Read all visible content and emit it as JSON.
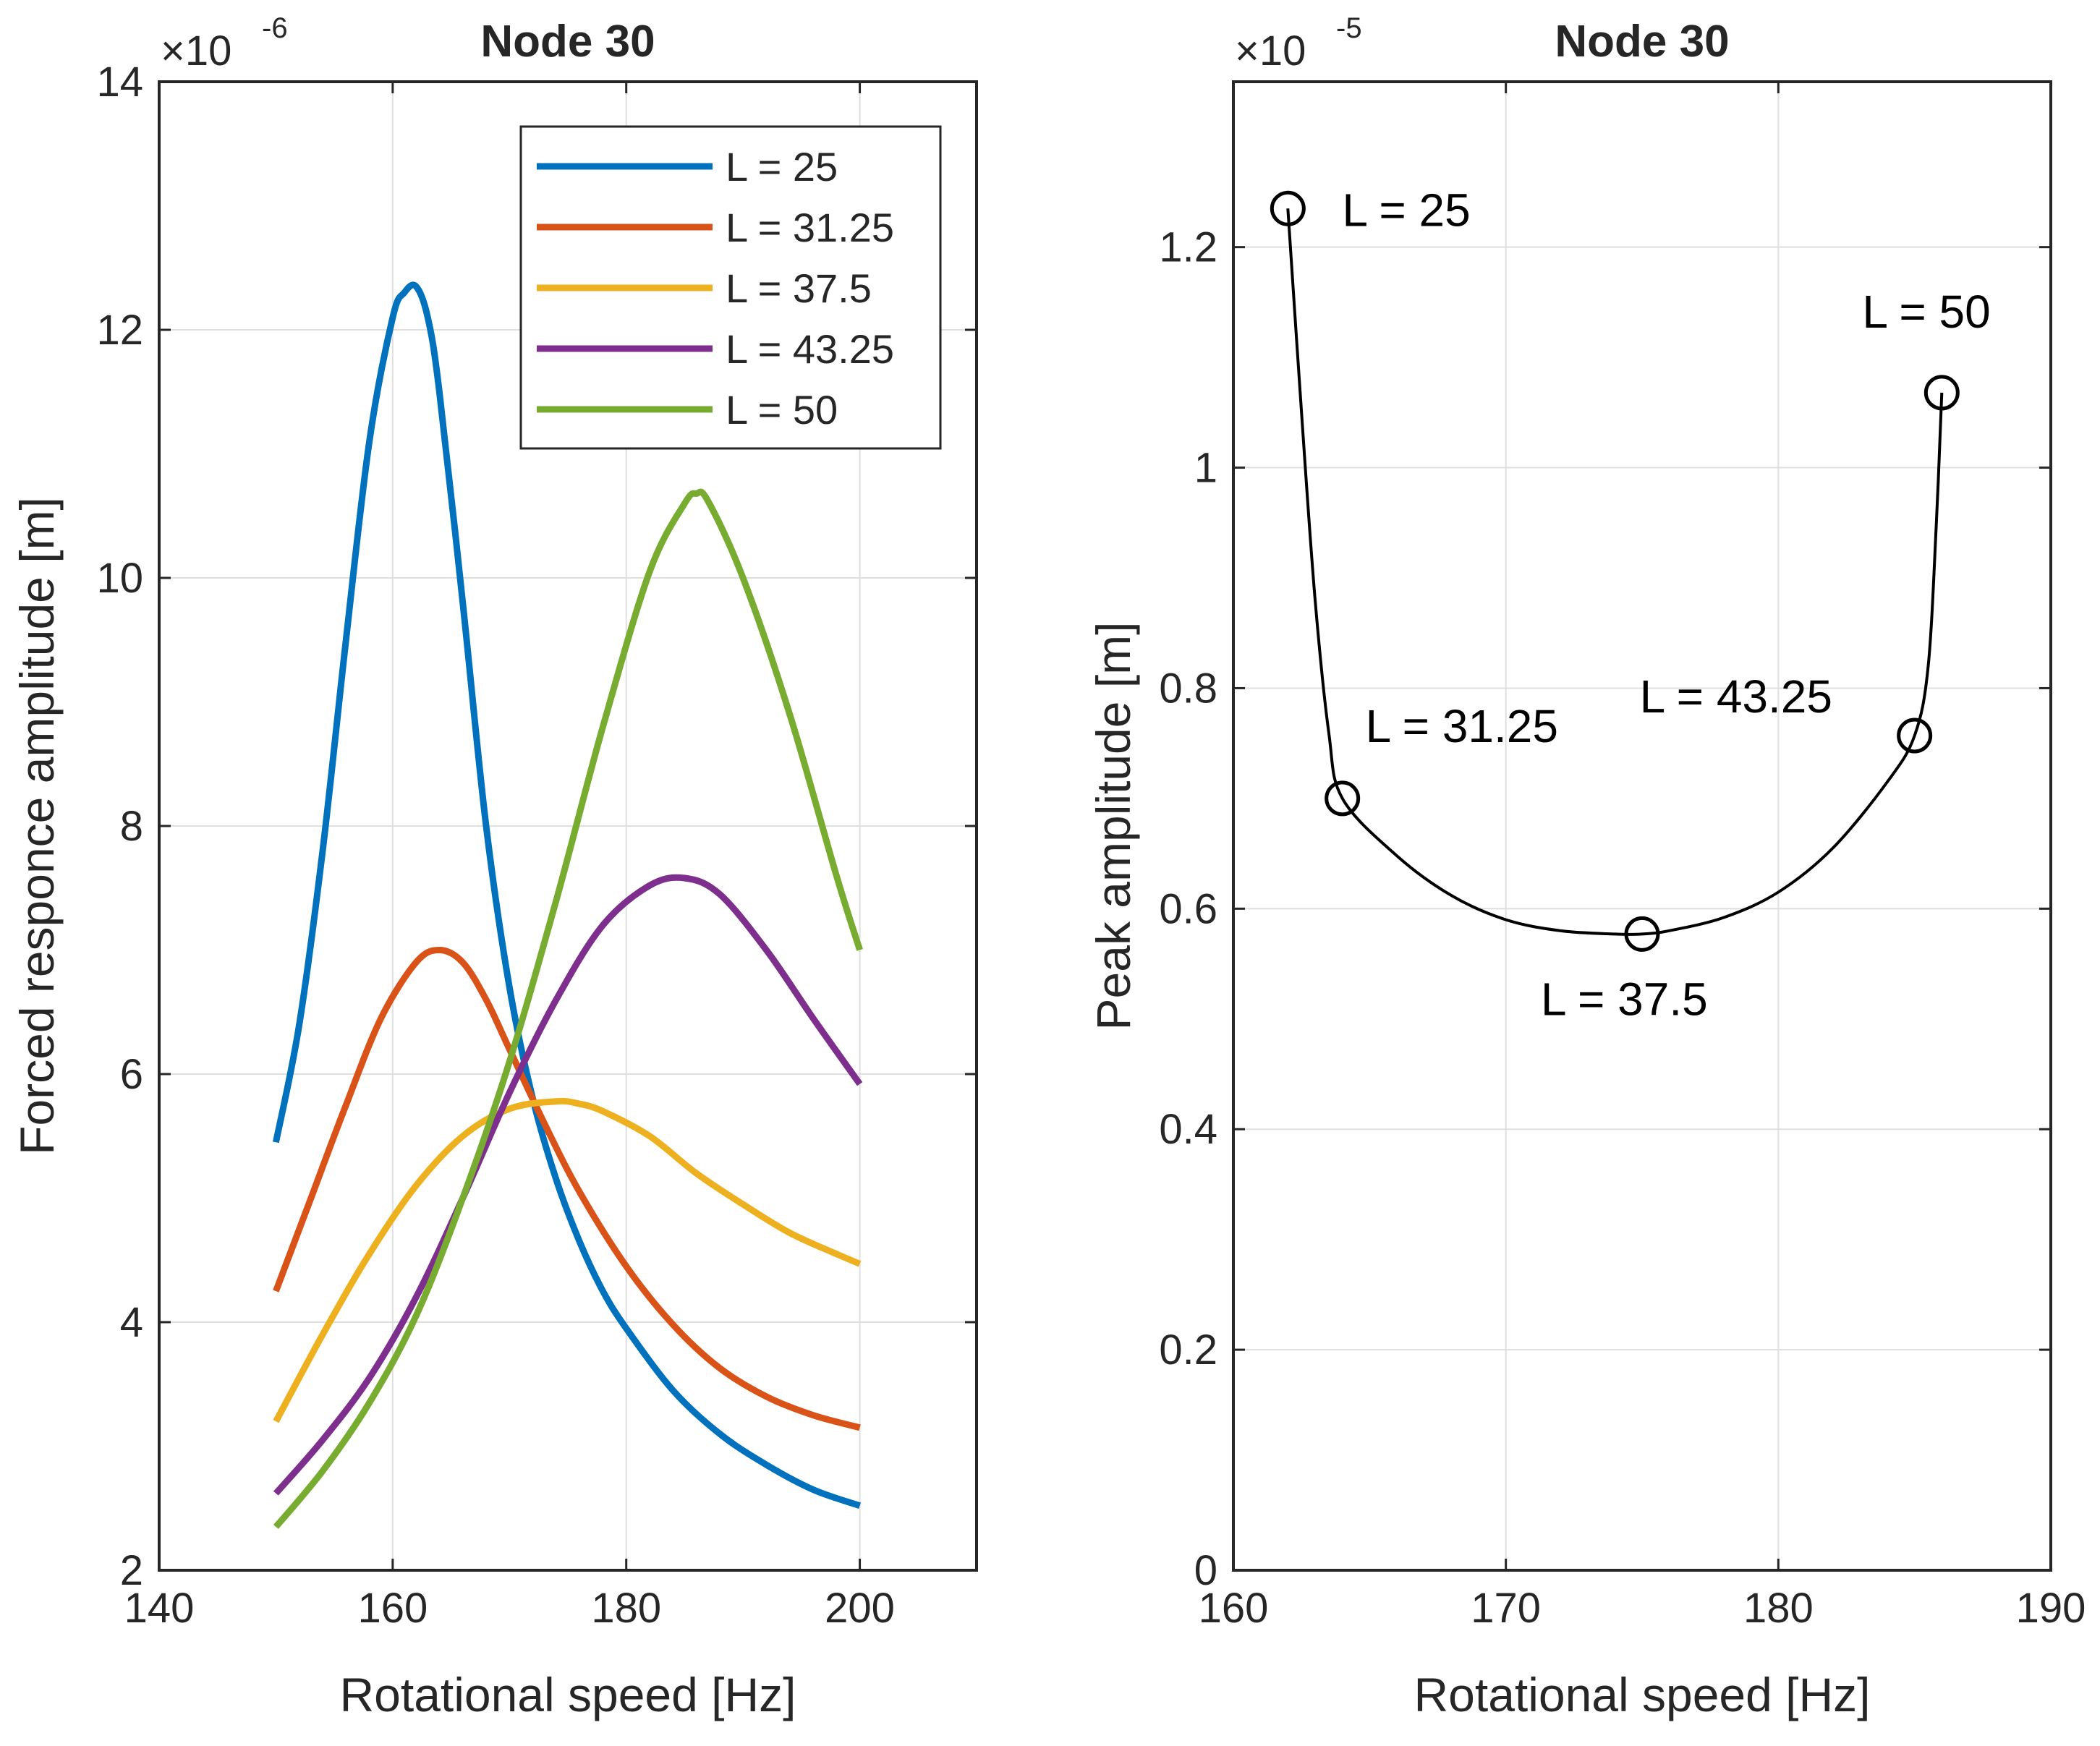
{
  "chart_data": [
    {
      "type": "line",
      "title": "Node 30",
      "xlabel": "Rotational speed [Hz]",
      "ylabel": "Forced responce amplitude [m]",
      "exponent_base": "×10",
      "exponent_power": "-6",
      "xlim": [
        140,
        210
      ],
      "ylim": [
        2,
        14
      ],
      "xticks": [
        140,
        160,
        180,
        200
      ],
      "yticks": [
        2,
        4,
        6,
        8,
        10,
        12,
        14
      ],
      "grid": true,
      "legend_position": "top-right",
      "series": [
        {
          "name": "L = 25",
          "color": "#0072BD",
          "x": [
            150,
            152,
            154,
            156,
            158,
            160,
            161,
            162,
            163,
            164,
            166,
            168,
            170,
            172,
            174,
            176,
            178,
            180,
            184,
            188,
            192,
            196,
            200
          ],
          "y": [
            5.45,
            6.4,
            7.8,
            9.5,
            11.1,
            12.1,
            12.3,
            12.35,
            12.1,
            11.5,
            9.8,
            8.0,
            6.7,
            5.8,
            5.15,
            4.65,
            4.25,
            3.95,
            3.45,
            3.1,
            2.85,
            2.65,
            2.52
          ]
        },
        {
          "name": "L = 31.25",
          "color": "#D95319",
          "x": [
            150,
            153,
            156,
            159,
            162,
            164,
            166,
            168,
            170,
            173,
            176,
            180,
            184,
            188,
            192,
            196,
            200
          ],
          "y": [
            4.25,
            5.0,
            5.75,
            6.45,
            6.9,
            7.0,
            6.9,
            6.6,
            6.2,
            5.6,
            5.05,
            4.45,
            3.98,
            3.63,
            3.4,
            3.25,
            3.15
          ]
        },
        {
          "name": "L = 37.5",
          "color": "#EDB120",
          "x": [
            150,
            154,
            158,
            162,
            166,
            170,
            174,
            176,
            178,
            182,
            186,
            190,
            194,
            198,
            200
          ],
          "y": [
            3.2,
            3.9,
            4.55,
            5.1,
            5.5,
            5.72,
            5.78,
            5.76,
            5.7,
            5.5,
            5.2,
            4.95,
            4.72,
            4.55,
            4.47
          ]
        },
        {
          "name": "L = 43.25",
          "color": "#7E2F8E",
          "x": [
            150,
            154,
            158,
            162,
            166,
            170,
            174,
            178,
            182,
            185,
            188,
            192,
            196,
            200
          ],
          "y": [
            2.62,
            3.05,
            3.55,
            4.2,
            5.0,
            5.85,
            6.6,
            7.2,
            7.52,
            7.58,
            7.45,
            7.0,
            6.45,
            5.92
          ]
        },
        {
          "name": "L = 50",
          "color": "#77AC30",
          "x": [
            150,
            154,
            158,
            162,
            166,
            170,
            174,
            178,
            182,
            185,
            186,
            187,
            190,
            194,
            198,
            200
          ],
          "y": [
            2.35,
            2.8,
            3.35,
            4.05,
            5.0,
            6.1,
            7.4,
            8.8,
            10.05,
            10.6,
            10.68,
            10.62,
            10.0,
            8.9,
            7.6,
            7.0
          ]
        }
      ]
    },
    {
      "type": "line",
      "title": "Node 30",
      "xlabel": "Rotational speed [Hz]",
      "ylabel": "Peak amplitude [m]",
      "exponent_base": "×10",
      "exponent_power": "-5",
      "xlim": [
        160,
        190
      ],
      "ylim": [
        0,
        1.35
      ],
      "xticks": [
        160,
        170,
        180,
        190
      ],
      "yticks": [
        0,
        0.2,
        0.4,
        0.6,
        0.8,
        1,
        1.2
      ],
      "grid": true,
      "line_color": "#000000",
      "markers": [
        {
          "label": "L = 25",
          "x": 162,
          "y": 1.235
        },
        {
          "label": "L = 31.25",
          "x": 164,
          "y": 0.7
        },
        {
          "label": "L = 37.5",
          "x": 175,
          "y": 0.577
        },
        {
          "label": "L = 43.25",
          "x": 185,
          "y": 0.757
        },
        {
          "label": "L = 50",
          "x": 186,
          "y": 1.068
        }
      ],
      "curve": {
        "x": [
          162,
          162.5,
          163,
          163.5,
          164,
          166,
          168,
          170,
          172,
          174,
          175,
          176,
          178,
          180,
          182,
          184,
          185,
          185.5,
          185.8,
          186
        ],
        "y": [
          1.235,
          1.05,
          0.88,
          0.76,
          0.7,
          0.648,
          0.612,
          0.59,
          0.58,
          0.577,
          0.577,
          0.58,
          0.592,
          0.615,
          0.655,
          0.715,
          0.757,
          0.82,
          0.95,
          1.068
        ]
      }
    }
  ]
}
